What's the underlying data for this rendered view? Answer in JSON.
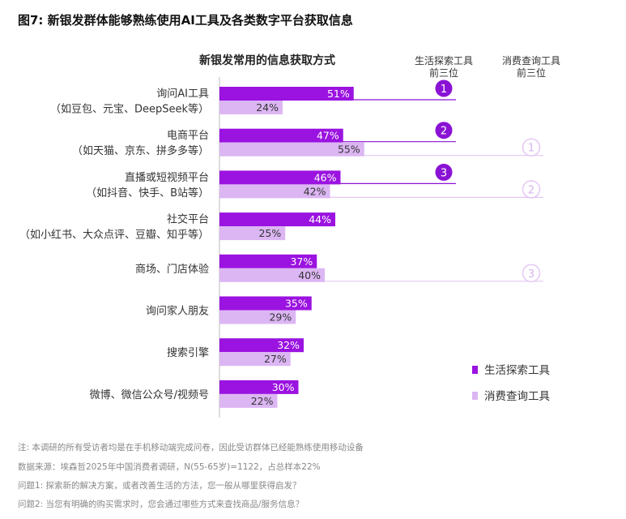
{
  "figure_title": "图7: 新银发群体能够熟练使用AI工具及各类数字平台获取信息",
  "colors": {
    "explore": "#9b13e0",
    "consume": "#dcb6f3",
    "rank_explore_fill": "#8a12d4",
    "rank_consume_stroke": "#e3c7f5",
    "axis": "#bbbbbb"
  },
  "chart_data": {
    "type": "bar",
    "title": "新银发常用的信息获取方式",
    "categories": [
      [
        "询问AI工具",
        "（如豆包、元宝、DeepSeek等）"
      ],
      [
        "电商平台",
        "（如天猫、京东、拼多多等）"
      ],
      [
        "直播或短视频平台",
        "（如抖音、快手、B站等）"
      ],
      [
        "社交平台",
        "（如小红书、大众点评、豆瓣、知乎等）"
      ],
      [
        "商场、门店体验"
      ],
      [
        "询问家人朋友"
      ],
      [
        "搜索引擎"
      ],
      [
        "微博、微信公众号/视频号"
      ]
    ],
    "series": [
      {
        "name": "生活探索工具",
        "values": [
          51,
          47,
          46,
          44,
          37,
          35,
          32,
          30
        ]
      },
      {
        "name": "消费查询工具",
        "values": [
          24,
          55,
          42,
          25,
          40,
          29,
          27,
          22
        ]
      }
    ],
    "value_suffix": "%",
    "rank_columns": [
      {
        "label": [
          "生活探索工具",
          "前三位"
        ],
        "series": 0,
        "items": [
          {
            "category": 0,
            "rank": "1"
          },
          {
            "category": 1,
            "rank": "2"
          },
          {
            "category": 2,
            "rank": "3"
          }
        ]
      },
      {
        "label": [
          "消费查询工具",
          "前三位"
        ],
        "series": 1,
        "items": [
          {
            "category": 1,
            "rank": "1"
          },
          {
            "category": 2,
            "rank": "2"
          },
          {
            "category": 4,
            "rank": "3"
          }
        ]
      }
    ],
    "legend": [
      "生活探索工具",
      "消费查询工具"
    ],
    "legend_position": "bottom-right",
    "grid": false
  },
  "notes": [
    "注: 本调研的所有受访者均是在手机移动端完成问卷，因此受访群体已经能熟练使用移动设备",
    "数据来源：埃森哲2025年中国消费者调研，N(55-65岁)=1122，占总样本22%",
    "问题1: 探索新的解决方案，或者改善生活的方法，您一般从哪里获得启发？",
    "问题2: 当您有明确的购买需求时，您会通过哪些方式来查找商品/服务信息？"
  ]
}
